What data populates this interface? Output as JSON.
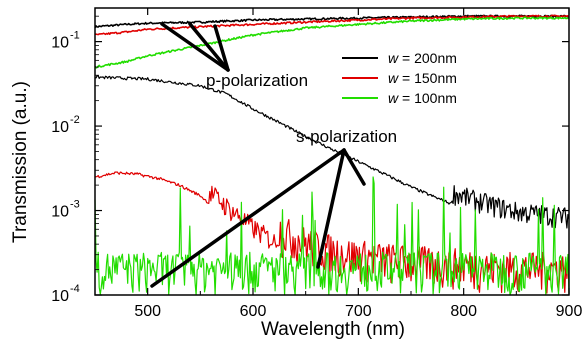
{
  "chart_data": {
    "type": "line",
    "title": "",
    "xlabel": "Wavelength (nm)",
    "ylabel": "Transmission (a.u.)",
    "xlim": [
      450,
      900
    ],
    "ylim": [
      0.0001,
      0.25
    ],
    "yscale": "log",
    "x_ticks": [
      500,
      600,
      700,
      800,
      900
    ],
    "x_tick_labels": [
      "500",
      "600",
      "700",
      "800",
      "900"
    ],
    "y_ticks": [
      0.0001,
      0.001,
      0.01,
      0.1
    ],
    "y_tick_labels": [
      {
        "base": "10",
        "exp": "-4"
      },
      {
        "base": "10",
        "exp": "-3"
      },
      {
        "base": "10",
        "exp": "-2"
      },
      {
        "base": "10",
        "exp": "-1"
      }
    ],
    "legend_position": "upper-right",
    "series": [
      {
        "name": "w = 200nm",
        "legend_var": "w",
        "legend_value": " = 200nm",
        "color": "#000000",
        "polarization": "p",
        "x": [
          450,
          480,
          500,
          550,
          600,
          650,
          700,
          750,
          800,
          850,
          900
        ],
        "y": [
          0.15,
          0.16,
          0.165,
          0.17,
          0.18,
          0.185,
          0.19,
          0.195,
          0.2,
          0.2,
          0.2
        ]
      },
      {
        "name": "w = 150nm",
        "legend_var": "w",
        "legend_value": " = 150nm",
        "color": "#e00000",
        "polarization": "p",
        "x": [
          450,
          480,
          500,
          550,
          600,
          650,
          700,
          750,
          800,
          850,
          900
        ],
        "y": [
          0.12,
          0.13,
          0.14,
          0.15,
          0.16,
          0.17,
          0.18,
          0.19,
          0.195,
          0.2,
          0.2
        ]
      },
      {
        "name": "w = 100nm",
        "legend_var": "w",
        "legend_value": " = 100nm",
        "color": "#22dd00",
        "polarization": "p",
        "x": [
          450,
          480,
          500,
          550,
          600,
          650,
          700,
          750,
          800,
          850,
          900
        ],
        "y": [
          0.05,
          0.058,
          0.068,
          0.09,
          0.12,
          0.145,
          0.16,
          0.175,
          0.185,
          0.19,
          0.19
        ]
      },
      {
        "name": "w = 200nm (s)",
        "color": "#000000",
        "polarization": "s",
        "x": [
          450,
          500,
          550,
          575,
          600,
          625,
          650,
          675,
          700,
          725,
          750,
          775,
          800,
          825,
          850,
          875,
          900
        ],
        "y": [
          0.038,
          0.036,
          0.03,
          0.024,
          0.016,
          0.011,
          0.0075,
          0.0053,
          0.0038,
          0.0027,
          0.0019,
          0.0014,
          0.00105,
          0.00085,
          0.0007,
          0.00065,
          0.0006
        ]
      },
      {
        "name": "w = 150nm (s)",
        "color": "#e00000",
        "polarization": "s",
        "x": [
          450,
          470,
          490,
          510,
          530,
          550,
          575,
          600,
          625,
          650,
          675,
          700,
          750,
          800,
          850,
          900
        ],
        "y": [
          0.0025,
          0.0028,
          0.0027,
          0.0024,
          0.002,
          0.0015,
          0.0008,
          0.00045,
          0.00028,
          0.0002,
          0.00016,
          0.00014,
          0.00012,
          0.00011,
          0.0001,
          0.0001
        ]
      },
      {
        "name": "w = 100nm (s)",
        "color": "#22dd00",
        "polarization": "s",
        "x": [
          450,
          500,
          550,
          600,
          650,
          700,
          750,
          800,
          850,
          900
        ],
        "y": [
          0.0001,
          0.0001,
          0.0001,
          0.0001,
          0.0001,
          0.0001,
          0.0001,
          0.0001,
          0.0001,
          0.0001
        ]
      }
    ],
    "annotations": [
      {
        "text": "p-polarization",
        "x": 630,
        "y": 0.055
      },
      {
        "text": "s-polarization",
        "x": 720,
        "y": 0.0056
      }
    ]
  }
}
